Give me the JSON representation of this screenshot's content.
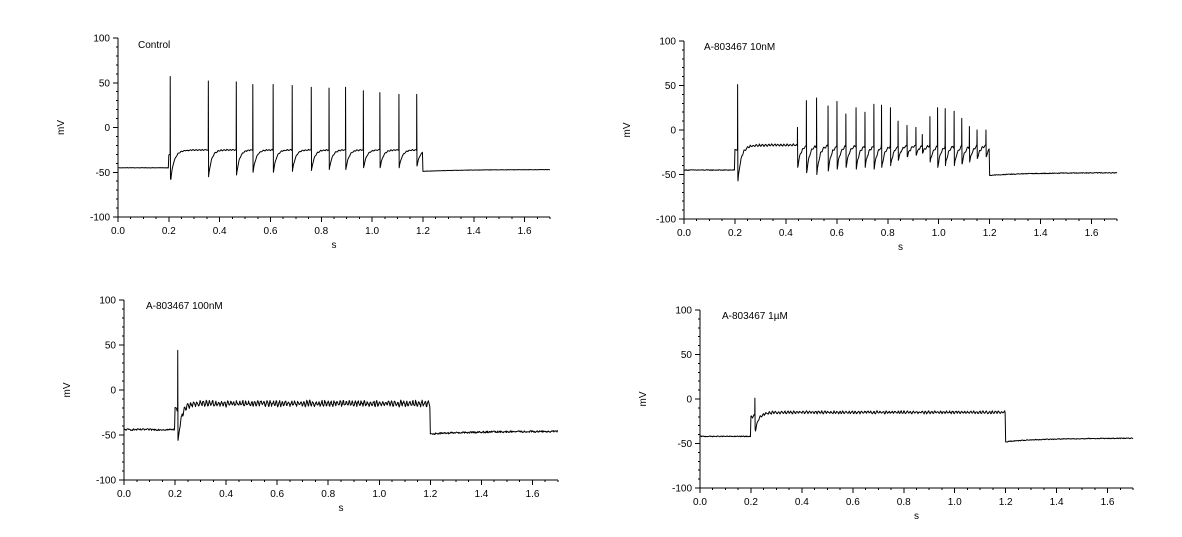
{
  "figure": {
    "background": "#ffffff",
    "trace_color": "#000000"
  },
  "chart_data": [
    {
      "type": "line",
      "title": "",
      "panel_label": "Control",
      "xlabel": "s",
      "ylabel": "mV",
      "xlim": [
        0,
        1.7
      ],
      "ylim": [
        -100,
        100
      ],
      "x_ticks": [
        0.0,
        0.2,
        0.4,
        0.6,
        0.8,
        1.0,
        1.2,
        1.4,
        1.6
      ],
      "x_tick_labels": [
        "0.0",
        "0.2",
        "0.4",
        "0.6",
        "0.8",
        "1.0",
        "1.2",
        "1.4",
        "1.6"
      ],
      "y_ticks": [
        -100,
        -50,
        0,
        50,
        100
      ],
      "y_tick_labels": [
        "-100",
        "-50",
        "0",
        "50",
        "100"
      ],
      "trace": {
        "baseline_mv": -45,
        "stim_start_s": 0.2,
        "stim_end_s": 1.2,
        "plateau_mv": -25,
        "post_mv": -49,
        "end_mv": -47,
        "spike_times_s": [
          0.205,
          0.355,
          0.465,
          0.53,
          0.61,
          0.685,
          0.76,
          0.83,
          0.895,
          0.965,
          1.03,
          1.105,
          1.175
        ],
        "spike_peaks_mv": [
          57,
          52,
          51,
          48,
          48,
          47,
          45,
          44,
          45,
          41,
          39,
          37,
          37
        ],
        "spike_troughs_mv": [
          -57,
          -55,
          -53,
          -50,
          -50,
          -49,
          -48,
          -47,
          -47,
          -45,
          -45,
          -45,
          -43
        ],
        "noise_mv": 0.5
      }
    },
    {
      "type": "line",
      "title": "",
      "panel_label": "A-803467 10nM",
      "xlabel": "s",
      "ylabel": "mV",
      "xlim": [
        0,
        1.7
      ],
      "ylim": [
        -100,
        100
      ],
      "x_ticks": [
        0.0,
        0.2,
        0.4,
        0.6,
        0.8,
        1.0,
        1.2,
        1.4,
        1.6
      ],
      "x_tick_labels": [
        "0.0",
        "0.2",
        "0.4",
        "0.6",
        "0.8",
        "1.0",
        "1.2",
        "1.4",
        "1.6"
      ],
      "y_ticks": [
        -100,
        -50,
        0,
        50,
        100
      ],
      "y_tick_labels": [
        "-100",
        "-50",
        "0",
        "50",
        "100"
      ],
      "trace": {
        "baseline_mv": -45,
        "stim_start_s": 0.2,
        "stim_end_s": 1.2,
        "plateau_mv": -17,
        "post_mv": -51,
        "end_mv": -48,
        "spike_times_s": [
          0.21,
          0.445,
          0.48,
          0.52,
          0.565,
          0.6,
          0.635,
          0.675,
          0.71,
          0.745,
          0.775,
          0.81,
          0.84,
          0.875,
          0.91,
          0.935,
          0.965,
          0.995,
          1.025,
          1.06,
          1.09,
          1.12,
          1.15,
          1.185
        ],
        "spike_peaks_mv": [
          51,
          3,
          33,
          36,
          27,
          32,
          18,
          25,
          20,
          29,
          28,
          25,
          10,
          5,
          3,
          -5,
          15,
          25,
          24,
          21,
          13,
          4,
          0,
          0
        ],
        "spike_troughs_mv": [
          -55,
          -42,
          -48,
          -50,
          -46,
          -44,
          -42,
          -44,
          -42,
          -44,
          -42,
          -40,
          -34,
          -30,
          -28,
          -26,
          -36,
          -42,
          -40,
          -40,
          -38,
          -36,
          -32,
          -30
        ],
        "noise_mv": 1.0
      }
    },
    {
      "type": "line",
      "title": "",
      "panel_label": "A-803467 100nM",
      "xlabel": "s",
      "ylabel": "mV",
      "xlim": [
        0,
        1.7
      ],
      "ylim": [
        -100,
        100
      ],
      "x_ticks": [
        0.0,
        0.2,
        0.4,
        0.6,
        0.8,
        1.0,
        1.2,
        1.4,
        1.6
      ],
      "x_tick_labels": [
        "0.0",
        "0.2",
        "0.4",
        "0.6",
        "0.8",
        "1.0",
        "1.2",
        "1.4",
        "1.6"
      ],
      "y_ticks": [
        -100,
        -50,
        0,
        50,
        100
      ],
      "y_tick_labels": [
        "-100",
        "-50",
        "0",
        "50",
        "100"
      ],
      "trace": {
        "baseline_mv": -44,
        "stim_start_s": 0.2,
        "stim_end_s": 1.2,
        "plateau_mv": -15,
        "post_mv": -49,
        "end_mv": -46,
        "spike_times_s": [
          0.21
        ],
        "spike_peaks_mv": [
          44
        ],
        "spike_troughs_mv": [
          -56
        ],
        "noise_mv": 2.5
      }
    },
    {
      "type": "line",
      "title": "",
      "panel_label": "A-803467 1µM",
      "xlabel": "s",
      "ylabel": "mV",
      "xlim": [
        0,
        1.7
      ],
      "ylim": [
        -100,
        100
      ],
      "x_ticks": [
        0.0,
        0.2,
        0.4,
        0.6,
        0.8,
        1.0,
        1.2,
        1.4,
        1.6
      ],
      "x_tick_labels": [
        "0.0",
        "0.2",
        "0.4",
        "0.6",
        "0.8",
        "1.0",
        "1.2",
        "1.4",
        "1.6"
      ],
      "y_ticks": [
        -100,
        -50,
        0,
        50,
        100
      ],
      "y_tick_labels": [
        "-100",
        "-50",
        "0",
        "50",
        "100"
      ],
      "trace": {
        "baseline_mv": -42,
        "stim_start_s": 0.2,
        "stim_end_s": 1.2,
        "plateau_mv": -15,
        "post_mv": -48,
        "end_mv": -44,
        "spike_times_s": [
          0.215
        ],
        "spike_peaks_mv": [
          1
        ],
        "spike_troughs_mv": [
          -34
        ],
        "noise_mv": 1.2
      }
    }
  ]
}
